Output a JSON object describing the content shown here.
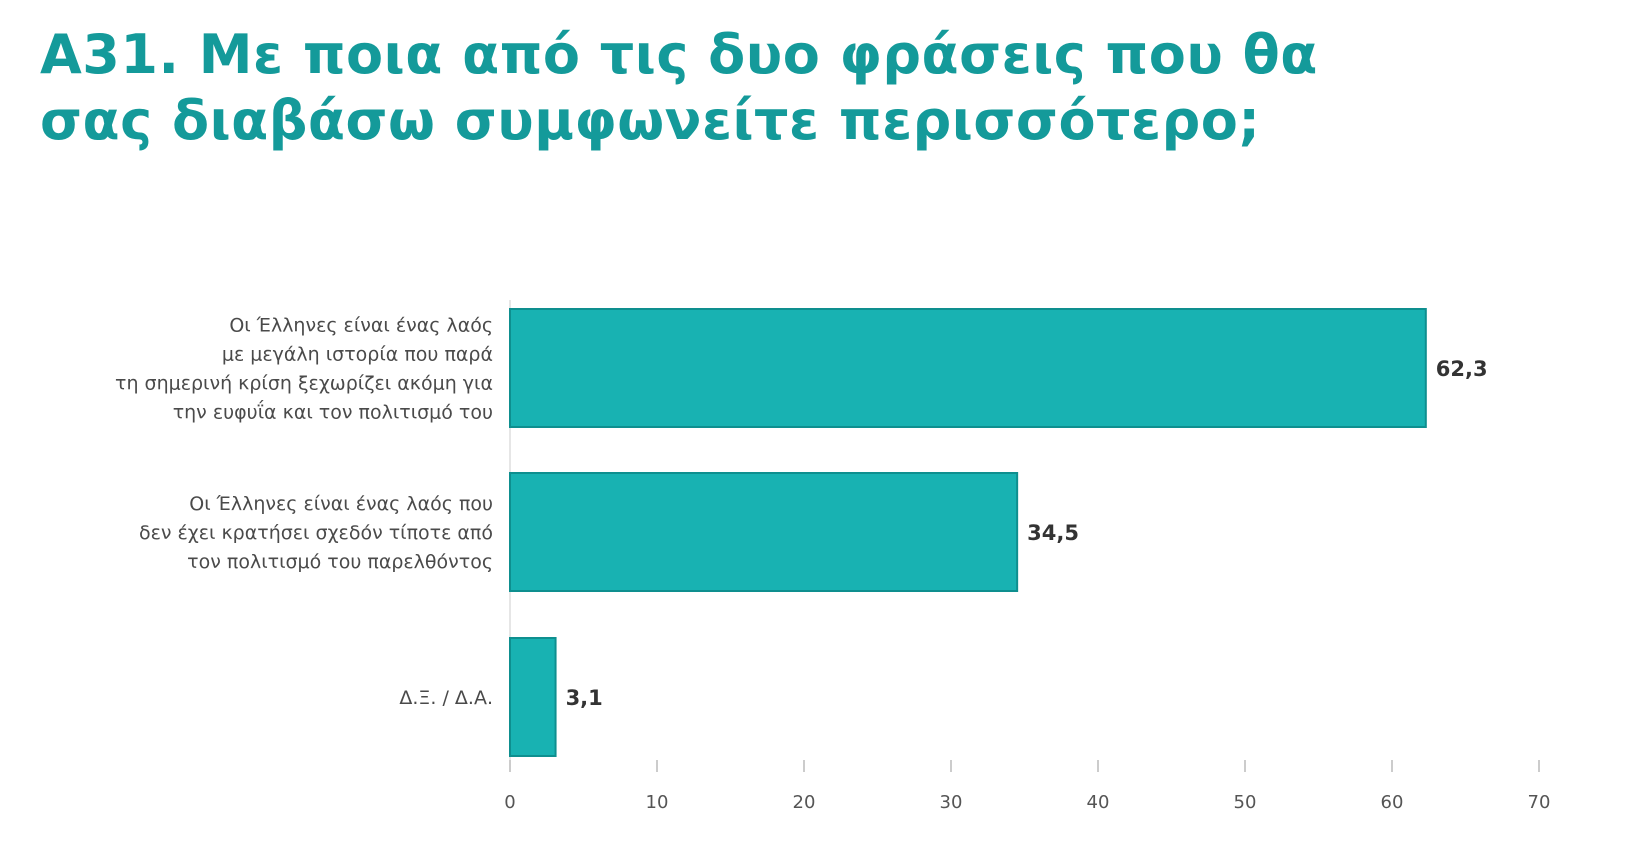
{
  "chart_data": {
    "type": "bar",
    "orientation": "horizontal",
    "title_lines": [
      "A31. Με ποια από τις δυο φράσεις που θα",
      "σας διαβάσω συμφωνείτε περισσότερο;"
    ],
    "categories": [
      [
        "Οι Έλληνες είναι ένας λαός",
        "με μεγάλη ιστορία που παρά",
        "τη σημερινή κρίση ξεχωρίζει ακόμη για",
        "την ευφυΐα και τον πολιτισμό του"
      ],
      [
        "Οι Έλληνες είναι ένας λαός που",
        "δεν έχει κρατήσει σχεδόν τίποτε από",
        "τον πολιτισμό του παρελθόντος"
      ],
      [
        "Δ.Ξ. / Δ.Α."
      ]
    ],
    "values": [
      62.3,
      34.5,
      3.1
    ],
    "value_labels": [
      "62,3",
      "34,5",
      "3,1"
    ],
    "xlim": [
      0,
      70
    ],
    "xticks": [
      "0",
      "10",
      "20",
      "30",
      "40",
      "50",
      "60",
      "70"
    ],
    "xlabel": "",
    "ylabel": "",
    "grid": false,
    "bar_color": "#18b2b2",
    "bar_edge_color": "#0e8f8f"
  }
}
